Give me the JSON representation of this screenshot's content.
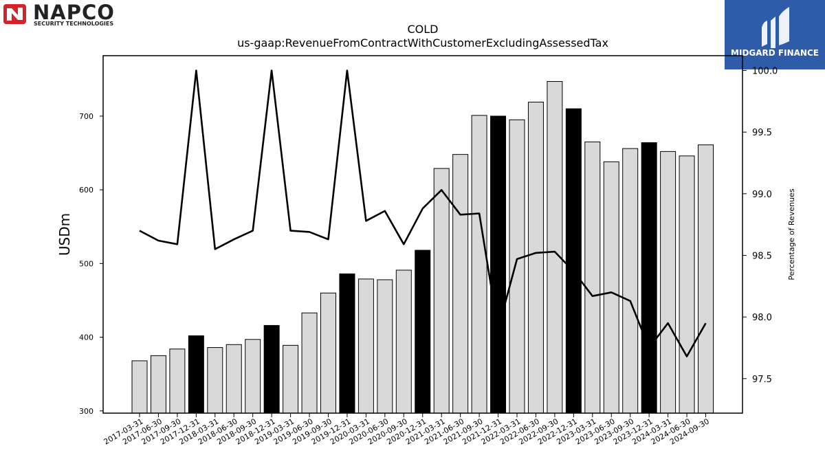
{
  "logos": {
    "left_name": "NAPCO",
    "left_sub": "SECURITY TECHNOLOGIES",
    "right_name": "MIDGARD FINANCE",
    "right_bg": "#2f5ca8"
  },
  "chart_data": {
    "type": "bar",
    "title": "COLD",
    "subtitle": "us-gaap:RevenueFromContractWithCustomerExcludingAssessedTax",
    "ylabel": "USDm",
    "y2label": "Percentage of Revenues",
    "ylim": [
      297,
      782
    ],
    "y2lim": [
      97.22,
      100.12
    ],
    "yticks": [
      300,
      400,
      500,
      600,
      700
    ],
    "y2ticks": [
      97.5,
      98.0,
      98.5,
      99.0,
      99.5,
      100.0
    ],
    "colors": {
      "bar_default": "#d9d9d9",
      "bar_highlight": "#000000",
      "line": "#000000"
    },
    "categories": [
      "2017-03-31",
      "2017-06-30",
      "2017-09-30",
      "2017-12-31",
      "2018-03-31",
      "2018-06-30",
      "2018-09-30",
      "2018-12-31",
      "2019-03-31",
      "2019-06-30",
      "2019-09-30",
      "2019-12-31",
      "2020-03-31",
      "2020-06-30",
      "2020-09-30",
      "2020-12-31",
      "2021-03-31",
      "2021-06-30",
      "2021-09-30",
      "2021-12-31",
      "2022-03-31",
      "2022-06-30",
      "2022-09-30",
      "2022-12-31",
      "2023-03-31",
      "2023-06-30",
      "2023-09-30",
      "2023-12-31",
      "2024-03-31",
      "2024-06-30",
      "2024-09-30"
    ],
    "series": [
      {
        "kind": "bar",
        "values": [
          368,
          375,
          384,
          402,
          386,
          390,
          397,
          416,
          389,
          433,
          460,
          486,
          479,
          478,
          491,
          518,
          629,
          648,
          701,
          700,
          695,
          719,
          747,
          710,
          665,
          638,
          656,
          664,
          652,
          646,
          661
        ],
        "highlight": [
          false,
          false,
          false,
          true,
          false,
          false,
          false,
          true,
          false,
          false,
          false,
          true,
          false,
          false,
          false,
          true,
          false,
          false,
          false,
          true,
          false,
          false,
          false,
          true,
          false,
          false,
          false,
          true,
          false,
          false,
          false
        ]
      },
      {
        "kind": "line",
        "axis": "right",
        "values": [
          98.7,
          98.62,
          98.59,
          100.0,
          98.55,
          98.63,
          98.7,
          100.0,
          98.7,
          98.69,
          98.63,
          100.0,
          98.78,
          98.86,
          98.59,
          98.88,
          99.03,
          98.83,
          98.84,
          97.9,
          98.47,
          98.52,
          98.53,
          98.37,
          98.17,
          98.2,
          98.13,
          97.75,
          97.95,
          97.68,
          97.95
        ]
      }
    ]
  }
}
